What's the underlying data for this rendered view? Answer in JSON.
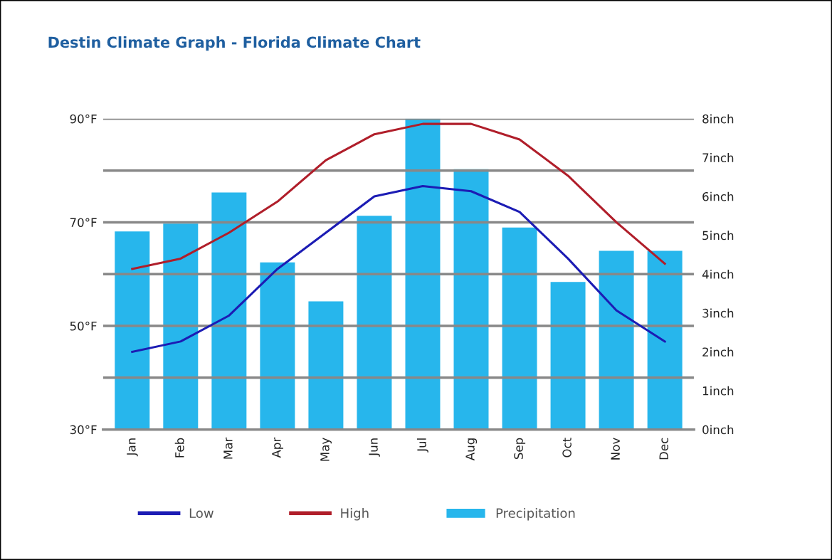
{
  "chart_data": {
    "type": "bar",
    "title": "Destin Climate Graph - Florida Climate Chart",
    "categories": [
      "Jan",
      "Feb",
      "Mar",
      "Apr",
      "May",
      "Jun",
      "Jul",
      "Aug",
      "Sep",
      "Oct",
      "Nov",
      "Dec"
    ],
    "series": [
      {
        "name": "Low",
        "type": "line",
        "color": "#1c1cb4",
        "values": [
          45,
          47,
          52,
          61,
          68,
          75,
          77,
          76,
          72,
          63,
          53,
          47
        ]
      },
      {
        "name": "High",
        "type": "line",
        "color": "#b01e2a",
        "values": [
          61,
          63,
          68,
          74,
          82,
          87,
          89,
          89,
          86,
          79,
          70,
          62
        ]
      },
      {
        "name": "Precipitation",
        "axis": "y2",
        "color": "#27b6ec",
        "values": [
          5.1,
          5.3,
          6.1,
          4.3,
          3.3,
          5.5,
          8.0,
          6.7,
          5.2,
          3.8,
          4.6,
          4.6
        ]
      }
    ],
    "ylim": [
      30,
      90
    ],
    "yticks": [
      {
        "value": 30,
        "label": "30°F"
      },
      {
        "value": 40,
        "label": null
      },
      {
        "value": 50,
        "label": "50°F"
      },
      {
        "value": 60,
        "label": null
      },
      {
        "value": 70,
        "label": "70°F"
      },
      {
        "value": 80,
        "label": null
      },
      {
        "value": 90,
        "label": "90°F"
      }
    ],
    "y2lim": [
      0,
      8
    ],
    "y2ticks": [
      {
        "value": 0,
        "label": "0inch"
      },
      {
        "value": 1,
        "label": "1inch"
      },
      {
        "value": 2,
        "label": "2inch"
      },
      {
        "value": 3,
        "label": "3inch"
      },
      {
        "value": 4,
        "label": "4inch"
      },
      {
        "value": 5,
        "label": "5inch"
      },
      {
        "value": 6,
        "label": "6inch"
      },
      {
        "value": 7,
        "label": "7inch"
      },
      {
        "value": 8,
        "label": "8inch"
      }
    ],
    "grid": "y",
    "legend": "bottom",
    "marker": "none",
    "line_style": "solid"
  }
}
